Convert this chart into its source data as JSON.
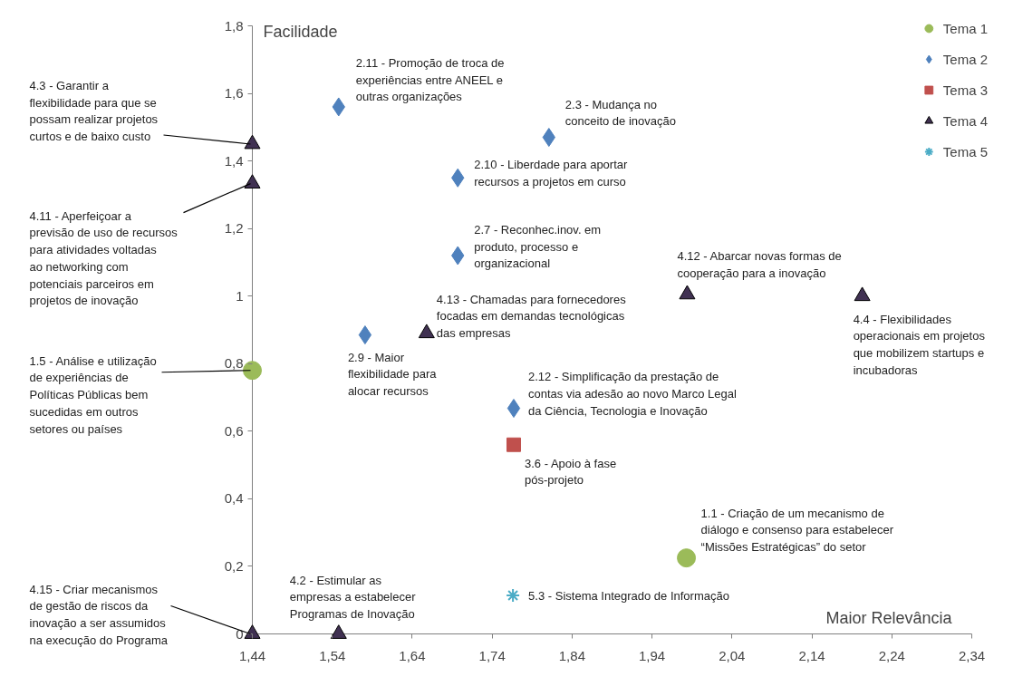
{
  "chart_data": {
    "type": "scatter",
    "xlabel": "Maior Relevância",
    "ylabel": "Facilidade",
    "xlim": [
      1.44,
      2.34
    ],
    "ylim": [
      0,
      1.8
    ],
    "xticks": [
      {
        "value": 1.44,
        "label": "1,44"
      },
      {
        "value": 1.54,
        "label": "1,54"
      },
      {
        "value": 1.64,
        "label": "1,64"
      },
      {
        "value": 1.74,
        "label": "1,74"
      },
      {
        "value": 1.84,
        "label": "1,84"
      },
      {
        "value": 1.94,
        "label": "1,94"
      },
      {
        "value": 2.04,
        "label": "2,04"
      },
      {
        "value": 2.14,
        "label": "2,14"
      },
      {
        "value": 2.24,
        "label": "2,24"
      },
      {
        "value": 2.34,
        "label": "2,34"
      }
    ],
    "yticks": [
      0,
      {
        "value": 0.2,
        "label": "0,2"
      },
      {
        "value": 0.4,
        "label": "0,4"
      },
      {
        "value": 0.6,
        "label": "0,6"
      },
      {
        "value": 0.8,
        "label": "0,8"
      },
      1,
      {
        "value": 1.2,
        "label": "1,2"
      },
      {
        "value": 1.4,
        "label": "1,4"
      },
      {
        "value": 1.6,
        "label": "1,6"
      },
      {
        "value": 1.8,
        "label": "1,8"
      }
    ],
    "grid": false,
    "legend": "top right",
    "series": [
      {
        "name": "Tema 1",
        "color": "#9bbb59",
        "marker": "circle",
        "x": [
          1.44,
          1.983
        ],
        "values": [
          0.78,
          0.225
        ]
      },
      {
        "name": "Tema 2",
        "color": "#4f81bd",
        "marker": "diamond",
        "x": [
          1.548,
          1.811,
          1.697,
          1.697,
          1.581,
          1.767
        ],
        "values": [
          1.56,
          1.47,
          1.35,
          1.12,
          0.885,
          0.668
        ]
      },
      {
        "name": "Tema 3",
        "color": "#c0504d",
        "marker": "square",
        "x": [
          1.767
        ],
        "values": [
          0.56
        ]
      },
      {
        "name": "Tema 4",
        "color": "#403152",
        "marker": "triangle",
        "x": [
          1.44,
          1.44,
          1.658,
          1.984,
          2.203,
          1.44,
          1.548
        ],
        "values": [
          1.45,
          1.333,
          0.89,
          1.005,
          1.0,
          0,
          0
        ]
      },
      {
        "name": "Tema 5",
        "color": "#4bacc6",
        "marker": "cross",
        "x": [
          1.766
        ],
        "values": [
          0.114
        ]
      }
    ],
    "annotations": [
      {
        "text": "2.11 - Promoção de troca de\nexperiências entre ANEEL e\noutras organizações",
        "x": 1.548,
        "y": 1.56
      },
      {
        "text": "2.3 - Mudança no\nconceito de inovação",
        "x": 1.811,
        "y": 1.47
      },
      {
        "text": "2.10 - Liberdade para aportar\nrecursos a projetos em curso",
        "x": 1.697,
        "y": 1.35
      },
      {
        "text": "2.7 - Reconhec.inov. em\nproduto, processo e\norganizacional",
        "x": 1.697,
        "y": 1.12
      },
      {
        "text": "2.9 - Maior\nflexibilidade para\nalocar recursos",
        "x": 1.581,
        "y": 0.885
      },
      {
        "text": "4.13 - Chamadas para fornecedores\nfocadas em demandas tecnológicas\ndas empresas",
        "x": 1.658,
        "y": 0.89
      },
      {
        "text": "4.12 - Abarcar novas formas de\ncooperação para a inovação",
        "x": 1.984,
        "y": 1.005
      },
      {
        "text": "4.4 - Flexibilidades\noperacionais em projetos\nque mobilizem startups e\nincubadoras",
        "x": 2.203,
        "y": 1.0
      },
      {
        "text": "2.12 - Simplificação da prestação de\ncontas via adesão ao novo Marco Legal\nda Ciência, Tecnologia e Inovação",
        "x": 1.767,
        "y": 0.668
      },
      {
        "text": "3.6 - Apoio à fase\npós-projeto",
        "x": 1.767,
        "y": 0.56
      },
      {
        "text": "1.1 - Criação de um mecanismo de\ndiálogo e consenso para estabelecer\n“Missões Estratégicas” do setor",
        "x": 1.983,
        "y": 0.225
      },
      {
        "text": "5.3 - Sistema Integrado de Informação",
        "x": 1.766,
        "y": 0.114
      },
      {
        "text": "4.2 - Estimular as\nempresas a estabelecer\nProgramas de Inovação",
        "x": 1.548,
        "y": 0
      },
      {
        "text": "4.3 - Garantir a\nflexibilidade para que se\npossam realizar projetos\ncurtos e de baixo custo",
        "x": 1.44,
        "y": 1.45
      },
      {
        "text": "4.11 - Aperfeiçoar a\nprevisão de uso de recursos\npara atividades voltadas\nao networking com\npotenciais parceiros em\nprojetos de inovação",
        "x": 1.44,
        "y": 1.333
      },
      {
        "text": "1.5 - Análise e utilização\nde experiências de\nPolíticas Públicas bem\nsucedidas em outros\nsetores ou países",
        "x": 1.44,
        "y": 0.78
      },
      {
        "text": "4.15 - Criar mecanismos\nde gestão de riscos da\ninovação a ser assumidos\nna execução do Programa",
        "x": 1.44,
        "y": 0
      }
    ]
  }
}
